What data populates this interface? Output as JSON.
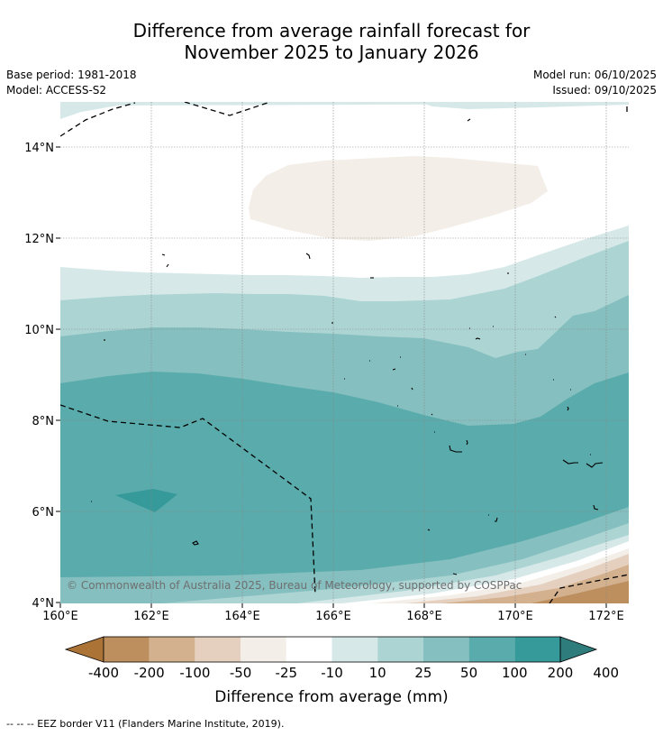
{
  "title": {
    "line1": "Difference from average rainfall forecast for",
    "line2": "November 2025 to January 2026"
  },
  "meta": {
    "base_period": "Base period: 1981-2018",
    "model": "Model: ACCESS-S2",
    "model_run": "Model run: 06/10/2025",
    "issued": "Issued: 09/10/2025"
  },
  "axes": {
    "lat_labels": [
      "14°N",
      "12°N",
      "10°N",
      "8°N",
      "6°N",
      "4°N"
    ],
    "lon_labels": [
      "160°E",
      "162°E",
      "164°E",
      "166°E",
      "168°E",
      "170°E",
      "172°E"
    ]
  },
  "copyright": "© Commonwealth of Australia 2025, Bureau of Meteorology, supported by COSPPac",
  "colorbar": {
    "ticks": [
      "-400",
      "-200",
      "-100",
      "-50",
      "-25",
      "-10",
      "10",
      "25",
      "50",
      "100",
      "200",
      "400"
    ],
    "colors": [
      "#ac7337",
      "#bd8f5e",
      "#d3b08e",
      "#e5d0bf",
      "#f3efe8",
      "#ffffff",
      "#d6e9e8",
      "#acd4d3",
      "#85bfbf",
      "#5aabab",
      "#359a99",
      "#2f7c7c"
    ],
    "label": "Difference from average (mm)"
  },
  "footnote": "-- -- -- EEZ border V11 (Flanders Marine Institute, 2019)."
}
